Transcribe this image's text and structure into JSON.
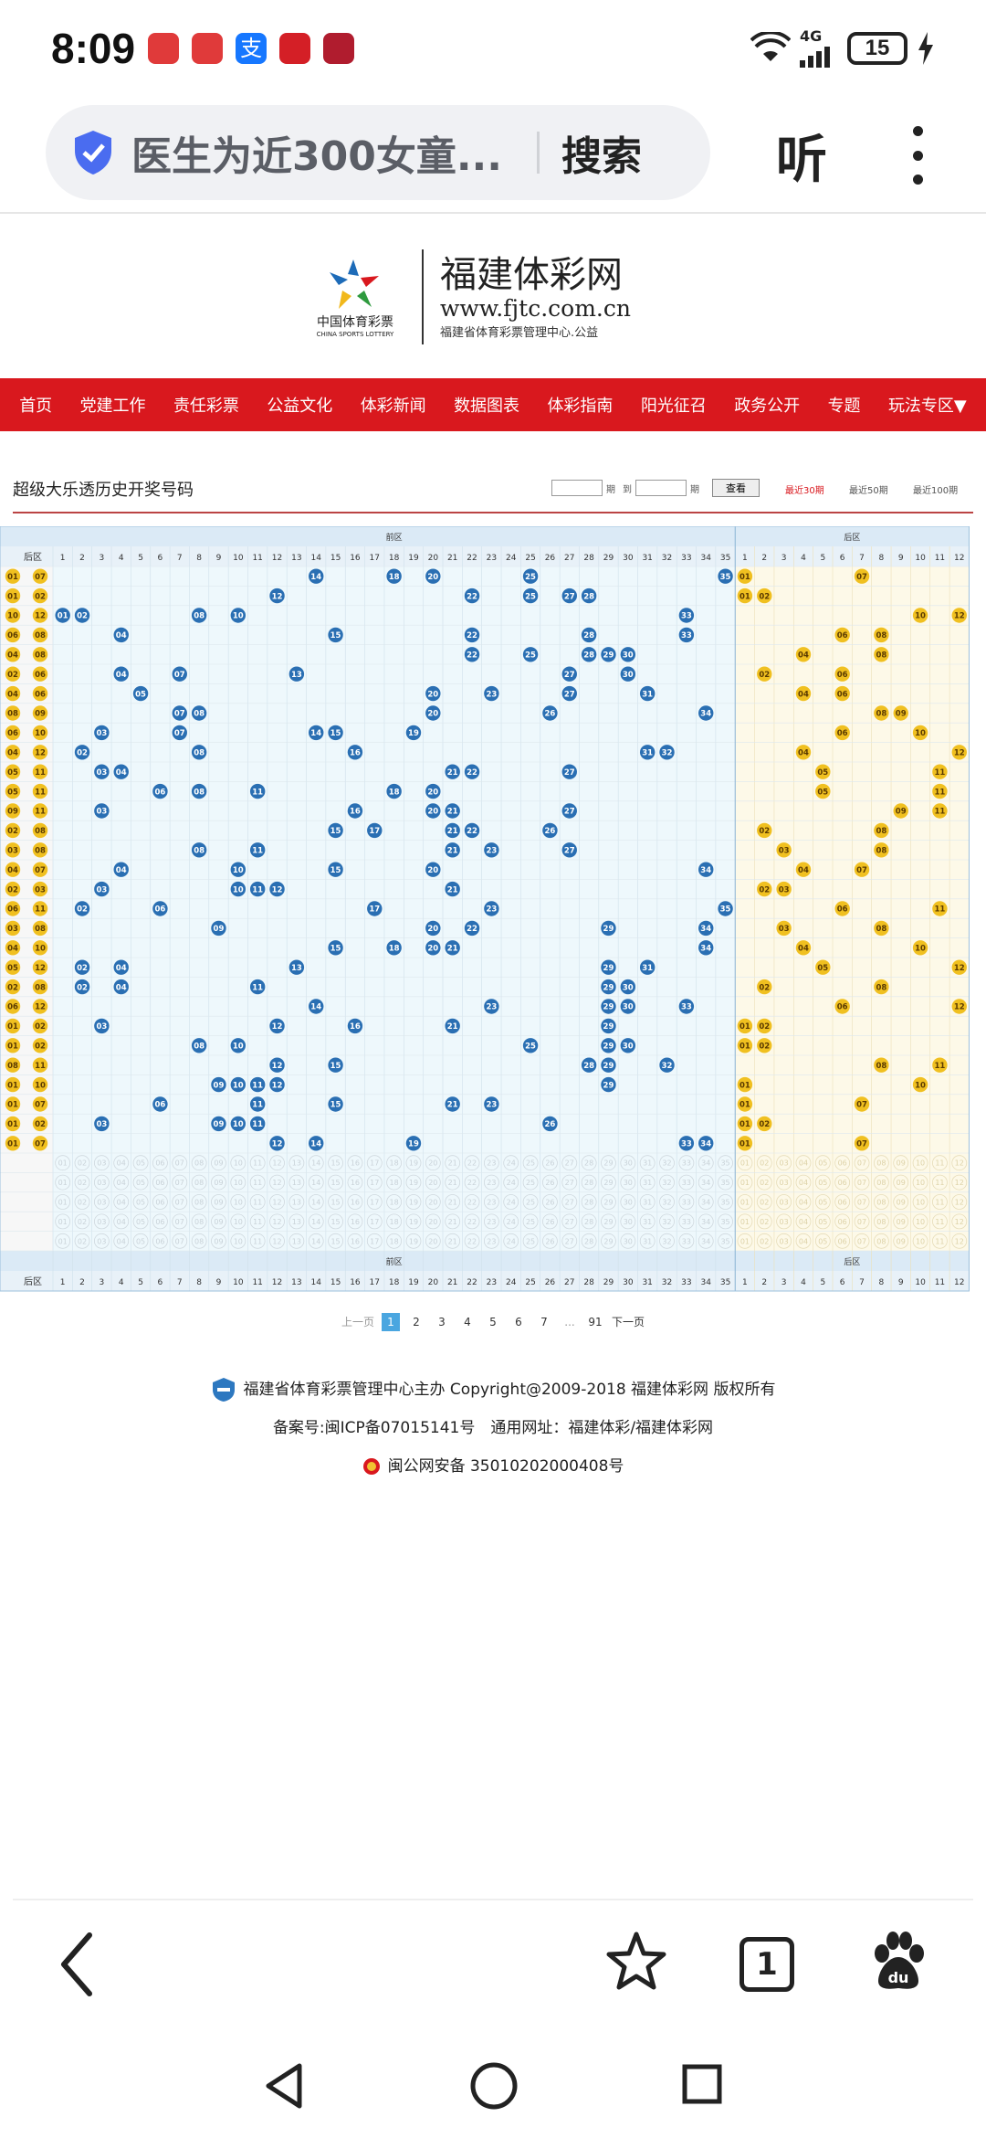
{
  "status_bar": {
    "time": "8:09",
    "network": "4G",
    "battery": "15"
  },
  "address_bar": {
    "query": "医生为近300女童...",
    "search_label": "搜索",
    "listen_label": "听"
  },
  "site": {
    "logo_cn": "中国体育彩票",
    "logo_en": "CHINA SPORTS LOTTERY",
    "title": "福建体彩网",
    "url": "www.fjtc.com.cn",
    "subtitle": "福建省体育彩票管理中心.公益"
  },
  "nav": [
    "首页",
    "党建工作",
    "责任彩票",
    "公益文化",
    "体彩新闻",
    "数据图表",
    "体彩指南",
    "阳光征召",
    "政务公开",
    "专题",
    "玩法专区▼"
  ],
  "section": {
    "title": "超级大乐透历史开奖号码",
    "period_label": "期",
    "to_label": "到",
    "query_button": "查看",
    "range_30": "最近30期",
    "range_50": "最近50期",
    "range_100": "最近100期"
  },
  "chart_data": {
    "type": "table",
    "front_zone_label": "前区",
    "back_zone_label": "后区",
    "back_col_header": "后区",
    "front_numbers": [
      "1",
      "2",
      "3",
      "4",
      "5",
      "6",
      "7",
      "8",
      "9",
      "10",
      "11",
      "12",
      "13",
      "14",
      "15",
      "16",
      "17",
      "18",
      "19",
      "20",
      "21",
      "22",
      "23",
      "24",
      "25",
      "26",
      "27",
      "28",
      "29",
      "30",
      "31",
      "32",
      "33",
      "34",
      "35"
    ],
    "back_numbers": [
      "1",
      "2",
      "3",
      "4",
      "5",
      "6",
      "7",
      "8",
      "9",
      "10",
      "11",
      "12"
    ],
    "draws": [
      {
        "back_col": [
          "01",
          "07"
        ],
        "front": [
          14,
          18,
          20,
          25,
          35
        ],
        "back": [
          1,
          7
        ]
      },
      {
        "back_col": [
          "01",
          "02"
        ],
        "front": [
          12,
          22,
          25,
          27,
          28
        ],
        "back": [
          1,
          2
        ]
      },
      {
        "back_col": [
          "10",
          "12"
        ],
        "front": [
          1,
          2,
          8,
          10,
          33
        ],
        "back": [
          10,
          12
        ]
      },
      {
        "back_col": [
          "06",
          "08"
        ],
        "front": [
          4,
          15,
          22,
          28,
          33
        ],
        "back": [
          6,
          8
        ]
      },
      {
        "back_col": [
          "04",
          "08"
        ],
        "front": [
          22,
          25,
          28,
          29,
          30
        ],
        "back": [
          4,
          8
        ]
      },
      {
        "back_col": [
          "02",
          "06"
        ],
        "front": [
          4,
          7,
          13,
          27,
          30
        ],
        "back": [
          2,
          6
        ]
      },
      {
        "back_col": [
          "04",
          "06"
        ],
        "front": [
          5,
          20,
          23,
          27,
          31
        ],
        "back": [
          4,
          6
        ]
      },
      {
        "back_col": [
          "08",
          "09"
        ],
        "front": [
          7,
          8,
          20,
          26,
          34
        ],
        "back": [
          8,
          9
        ]
      },
      {
        "back_col": [
          "06",
          "10"
        ],
        "front": [
          3,
          7,
          14,
          15,
          19
        ],
        "back": [
          6,
          10
        ]
      },
      {
        "back_col": [
          "04",
          "12"
        ],
        "front": [
          2,
          8,
          16,
          31,
          32
        ],
        "back": [
          4,
          12
        ]
      },
      {
        "back_col": [
          "05",
          "11"
        ],
        "front": [
          3,
          4,
          21,
          22,
          27
        ],
        "back": [
          5,
          11
        ]
      },
      {
        "back_col": [
          "05",
          "11"
        ],
        "front": [
          6,
          8,
          11,
          18,
          20
        ],
        "back": [
          5,
          11
        ]
      },
      {
        "back_col": [
          "09",
          "11"
        ],
        "front": [
          3,
          16,
          20,
          21,
          27
        ],
        "back": [
          9,
          11
        ]
      },
      {
        "back_col": [
          "02",
          "08"
        ],
        "front": [
          15,
          17,
          21,
          22,
          26
        ],
        "back": [
          2,
          8
        ]
      },
      {
        "back_col": [
          "03",
          "08"
        ],
        "front": [
          8,
          11,
          21,
          23,
          27
        ],
        "back": [
          3,
          8
        ]
      },
      {
        "back_col": [
          "04",
          "07"
        ],
        "front": [
          4,
          10,
          15,
          20,
          34
        ],
        "back": [
          4,
          7
        ]
      },
      {
        "back_col": [
          "02",
          "03"
        ],
        "front": [
          3,
          10,
          11,
          12,
          21
        ],
        "back": [
          2,
          3
        ]
      },
      {
        "back_col": [
          "06",
          "11"
        ],
        "front": [
          2,
          6,
          17,
          23,
          35
        ],
        "back": [
          6,
          11
        ]
      },
      {
        "back_col": [
          "03",
          "08"
        ],
        "front": [
          9,
          20,
          22,
          29,
          34
        ],
        "back": [
          3,
          8
        ]
      },
      {
        "back_col": [
          "04",
          "10"
        ],
        "front": [
          15,
          18,
          20,
          21,
          34
        ],
        "back": [
          4,
          10
        ]
      },
      {
        "back_col": [
          "05",
          "12"
        ],
        "front": [
          2,
          4,
          13,
          29,
          31
        ],
        "back": [
          5,
          12
        ]
      },
      {
        "back_col": [
          "02",
          "08"
        ],
        "front": [
          2,
          4,
          11,
          29,
          30
        ],
        "back": [
          2,
          8
        ]
      },
      {
        "back_col": [
          "06",
          "12"
        ],
        "front": [
          14,
          23,
          29,
          30,
          33
        ],
        "back": [
          6,
          12
        ]
      },
      {
        "back_col": [
          "01",
          "02"
        ],
        "front": [
          3,
          12,
          16,
          21,
          29
        ],
        "back": [
          1,
          2
        ]
      },
      {
        "back_col": [
          "01",
          "02"
        ],
        "front": [
          8,
          10,
          25,
          29,
          30
        ],
        "back": [
          1,
          2
        ]
      },
      {
        "back_col": [
          "08",
          "11"
        ],
        "front": [
          12,
          15,
          28,
          29,
          32
        ],
        "back": [
          8,
          11
        ]
      },
      {
        "back_col": [
          "01",
          "10"
        ],
        "front": [
          9,
          10,
          11,
          12,
          29
        ],
        "back": [
          1,
          10
        ]
      },
      {
        "back_col": [
          "01",
          "07"
        ],
        "front": [
          6,
          11,
          15,
          21,
          23
        ],
        "back": [
          1,
          7
        ]
      },
      {
        "back_col": [
          "01",
          "02"
        ],
        "front": [
          3,
          9,
          10,
          11,
          26
        ],
        "back": [
          1,
          2
        ]
      },
      {
        "back_col": [
          "01",
          "07"
        ],
        "front": [
          12,
          14,
          19,
          33,
          34
        ],
        "back": [
          1,
          7
        ]
      }
    ]
  },
  "pagination": {
    "prev": "上一页",
    "pages": [
      "1",
      "2",
      "3",
      "4",
      "5",
      "6",
      "7"
    ],
    "ellipsis": "...",
    "last": "91",
    "next": "下一页"
  },
  "footer": {
    "line1": "福建省体育彩票管理中心主办 Copyright@2009-2018 福建体彩网 版权所有",
    "line2": "备案号:闽ICP备07015141号　通用网址：福建体彩/福建体彩网",
    "line3": "闽公网安备 35010202000408号"
  },
  "bottom_bar": {
    "tab_count": "1"
  },
  "colors": {
    "nav_red": "#d9181e",
    "ball_blue": "#2a6fb3",
    "ball_gold": "#f0c020",
    "front_bg": "#eef8fc",
    "back_bg": "#fdf9e8"
  }
}
